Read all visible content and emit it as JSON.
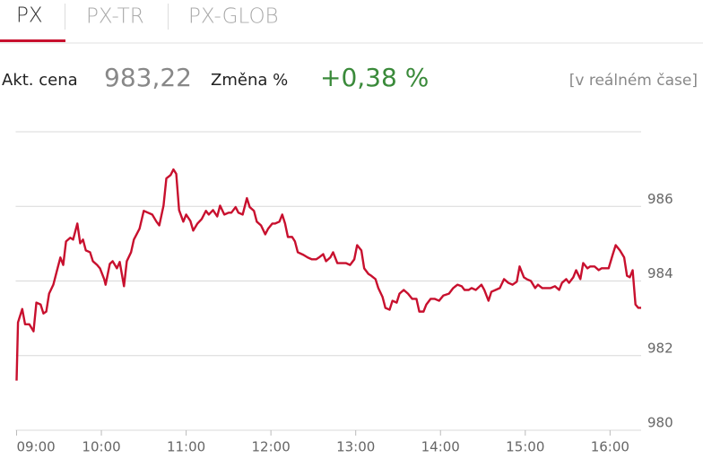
{
  "tabs": [
    "PX",
    "PX-TR",
    "PX-GLOB"
  ],
  "quote": {
    "price_label": "Akt. cena",
    "price": "983,22",
    "change_label": "Změna %",
    "change": "+0,38 %",
    "note": "[v reálném čase]"
  },
  "chart_data": {
    "type": "line",
    "color": "#c8102e",
    "grid": true,
    "xlim": [
      540,
      982
    ],
    "ylim": [
      980,
      988
    ],
    "yticks": [
      980,
      982,
      984,
      986
    ],
    "xticks": [
      {
        "value": 540,
        "label": "09:00"
      },
      {
        "value": 600,
        "label": "10:00"
      },
      {
        "value": 660,
        "label": "11:00"
      },
      {
        "value": 720,
        "label": "12:00"
      },
      {
        "value": 780,
        "label": "13:00"
      },
      {
        "value": 840,
        "label": "14:00"
      },
      {
        "value": 900,
        "label": "15:00"
      },
      {
        "value": 960,
        "label": "16:00"
      }
    ],
    "x": [
      540,
      541,
      543,
      544,
      546,
      549,
      552,
      554,
      557,
      559,
      561,
      563,
      566,
      569,
      571,
      573,
      575,
      578,
      580,
      583,
      585,
      587,
      589,
      592,
      594,
      597,
      599,
      602,
      603,
      606,
      608,
      611,
      613,
      616,
      618,
      621,
      623,
      627,
      630,
      633,
      636,
      639,
      641,
      644,
      646,
      649,
      651,
      653,
      655,
      658,
      660,
      663,
      665,
      668,
      671,
      674,
      676,
      679,
      682,
      684,
      687,
      690,
      692,
      695,
      697,
      700,
      703,
      705,
      708,
      710,
      713,
      716,
      718,
      721,
      723,
      726,
      728,
      730,
      732,
      735,
      737,
      739,
      743,
      746,
      749,
      752,
      754,
      757,
      759,
      762,
      764,
      767,
      769,
      773,
      776,
      779,
      781,
      784,
      786,
      789,
      791,
      794,
      796,
      799,
      801,
      804,
      806,
      809,
      811,
      814,
      817,
      820,
      823,
      825,
      828,
      830,
      833,
      836,
      839,
      842,
      846,
      849,
      852,
      855,
      857,
      860,
      862,
      865,
      869,
      871,
      874,
      876,
      879,
      882,
      885,
      888,
      891,
      894,
      896,
      899,
      901,
      904,
      907,
      909,
      912,
      915,
      918,
      921,
      924,
      926,
      929,
      931,
      934,
      936,
      939,
      941,
      944,
      946,
      949,
      952,
      954,
      957,
      959,
      962,
      964,
      967,
      970,
      972,
      974,
      976,
      978,
      980,
      982
    ],
    "values": [
      981.33,
      982.89,
      983.13,
      983.25,
      982.84,
      982.84,
      982.65,
      983.42,
      983.37,
      983.13,
      983.18,
      983.66,
      983.9,
      984.34,
      984.63,
      984.43,
      985.06,
      985.16,
      985.11,
      985.54,
      985.01,
      985.11,
      984.82,
      984.77,
      984.53,
      984.43,
      984.34,
      984.05,
      983.9,
      984.46,
      984.53,
      984.34,
      984.51,
      983.86,
      984.53,
      984.77,
      985.11,
      985.4,
      985.88,
      985.83,
      985.78,
      985.59,
      985.49,
      986.02,
      986.75,
      986.84,
      986.99,
      986.87,
      985.9,
      985.59,
      985.78,
      985.61,
      985.35,
      985.54,
      985.66,
      985.88,
      985.78,
      985.9,
      985.73,
      986.02,
      985.78,
      985.83,
      985.83,
      985.98,
      985.83,
      985.78,
      986.22,
      985.98,
      985.88,
      985.59,
      985.49,
      985.25,
      985.4,
      985.54,
      985.54,
      985.59,
      985.78,
      985.54,
      985.18,
      985.18,
      985.06,
      984.77,
      984.7,
      984.63,
      984.58,
      984.58,
      984.63,
      984.72,
      984.53,
      984.63,
      984.77,
      984.48,
      984.48,
      984.48,
      984.43,
      984.58,
      984.96,
      984.82,
      984.34,
      984.19,
      984.14,
      984.05,
      983.81,
      983.57,
      983.28,
      983.23,
      983.47,
      983.42,
      983.66,
      983.76,
      983.66,
      983.52,
      983.52,
      983.18,
      983.18,
      983.37,
      983.52,
      983.52,
      983.47,
      983.61,
      983.66,
      983.81,
      983.9,
      983.86,
      983.76,
      983.76,
      983.81,
      983.76,
      983.9,
      983.76,
      983.47,
      983.71,
      983.76,
      983.81,
      984.05,
      983.95,
      983.9,
      983.98,
      984.39,
      984.1,
      984.05,
      984.0,
      983.81,
      983.9,
      983.81,
      983.81,
      983.81,
      983.86,
      983.76,
      983.95,
      984.05,
      983.95,
      984.1,
      984.29,
      984.05,
      984.48,
      984.34,
      984.39,
      984.39,
      984.29,
      984.34,
      984.34,
      984.34,
      984.72,
      984.96,
      984.82,
      984.63,
      984.14,
      984.1,
      984.29,
      983.37,
      983.28,
      983.28
    ]
  }
}
